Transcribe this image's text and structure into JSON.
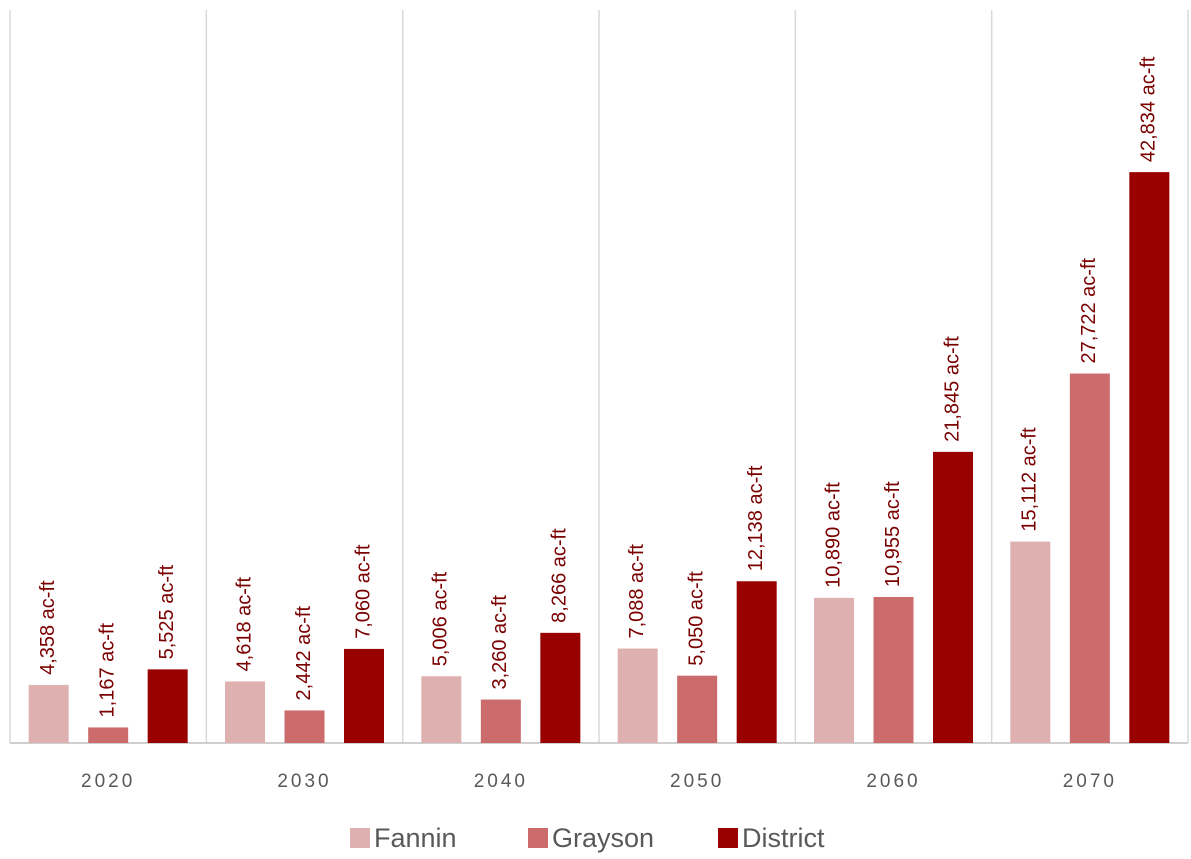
{
  "chart_data": {
    "type": "bar",
    "categories": [
      "2020",
      "2030",
      "2040",
      "2050",
      "2060",
      "2070"
    ],
    "series": [
      {
        "name": "Fannin",
        "color": "#dfb0b0",
        "values": [
          4358,
          4618,
          5006,
          7088,
          10890,
          15112
        ],
        "value_labels": [
          "4,358 ac-ft",
          "4,618 ac-ft",
          "5,006 ac-ft",
          "7,088 ac-ft",
          "10,890 ac-ft",
          "15,112 ac-ft"
        ]
      },
      {
        "name": "Grayson",
        "color": "#cc6b6b",
        "values": [
          1167,
          2442,
          3260,
          5050,
          10955,
          27722
        ],
        "value_labels": [
          "1,167 ac-ft",
          "2,442 ac-ft",
          "3,260 ac-ft",
          "5,050 ac-ft",
          "10,955 ac-ft",
          "27,722 ac-ft"
        ]
      },
      {
        "name": "District",
        "color": "#990000",
        "values": [
          5525,
          7060,
          8266,
          12138,
          21845,
          42834
        ],
        "value_labels": [
          "5,525 ac-ft",
          "7,060 ac-ft",
          "8,266 ac-ft",
          "12,138 ac-ft",
          "21,845 ac-ft",
          "42,834 ac-ft"
        ]
      }
    ],
    "ylim": [
      0,
      55000
    ],
    "legend": "bottom"
  }
}
